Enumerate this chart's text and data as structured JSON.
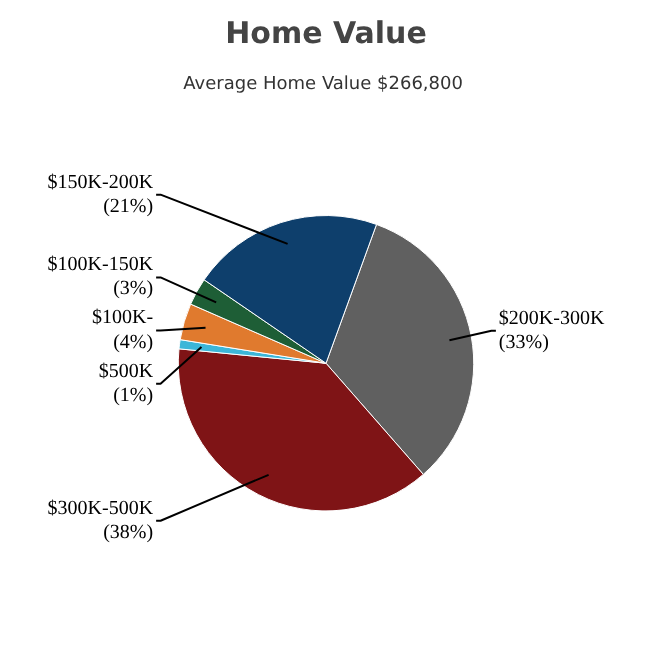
{
  "chart_data": {
    "type": "pie",
    "title": "Home Value",
    "subtitle": "Average Home Value  $266,800",
    "categories": [
      "$200K-300K",
      "$300K-500K",
      "$500K",
      "$100K-",
      "$100K-150K",
      "$150K-200K"
    ],
    "values": [
      33,
      38,
      1,
      4,
      3,
      21
    ],
    "colors": [
      "#606060",
      "#7f1416",
      "#3cb6d8",
      "#e07a2e",
      "#1e5e36",
      "#0e3f6c"
    ],
    "value_labels": [
      "(33%)",
      "(38%)",
      "(1%)",
      "(4%)",
      "(3%)",
      "(21%)"
    ]
  }
}
